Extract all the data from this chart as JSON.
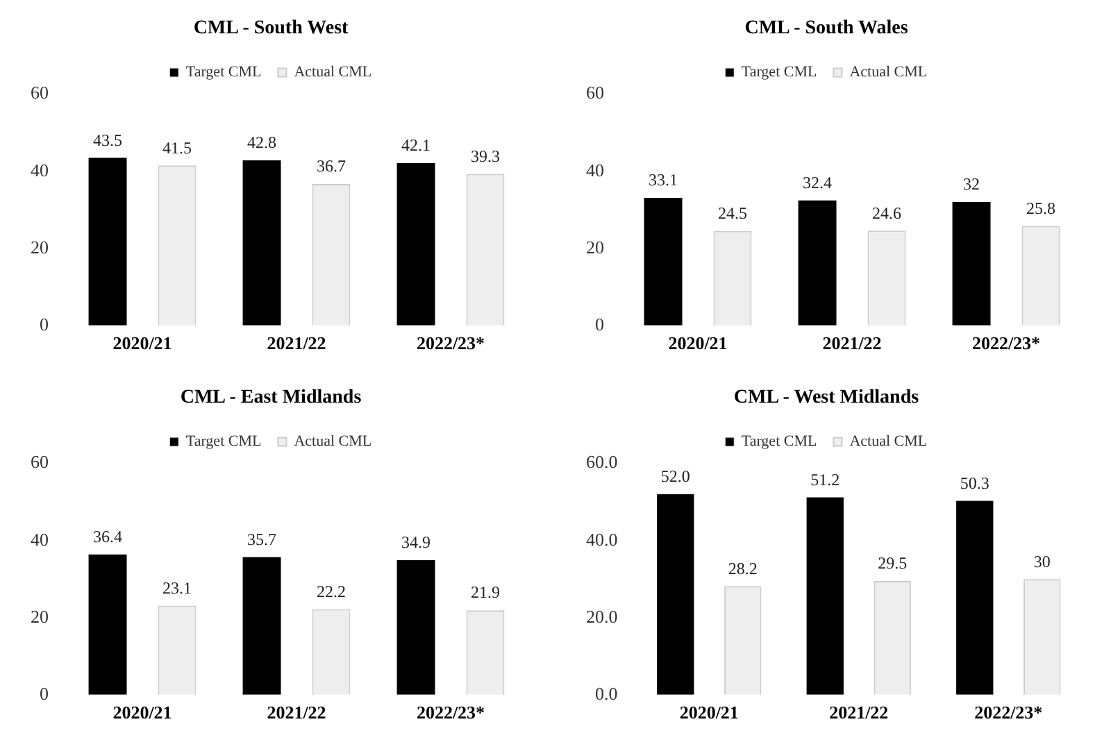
{
  "chart_data": [
    {
      "type": "bar",
      "title": "CML - South West",
      "categories": [
        "2020/21",
        "2021/22",
        "2022/23*"
      ],
      "series": [
        {
          "name": "Target CML",
          "color": "#000000",
          "values": [
            43.5,
            42.8,
            42.1
          ]
        },
        {
          "name": "Actual CML",
          "color": "#eeeeee",
          "values": [
            41.5,
            36.7,
            39.3
          ]
        }
      ],
      "ylim": [
        0,
        60
      ],
      "yticks": [
        0,
        20,
        40,
        60
      ],
      "grid": false,
      "legend": "top",
      "data_labels": true
    },
    {
      "type": "bar",
      "title": "CML - South Wales",
      "categories": [
        "2020/21",
        "2021/22",
        "2022/23*"
      ],
      "series": [
        {
          "name": "Target CML",
          "color": "#000000",
          "values": [
            33.1,
            32.4,
            32
          ]
        },
        {
          "name": "Actual CML",
          "color": "#eeeeee",
          "values": [
            24.5,
            24.6,
            25.8
          ]
        }
      ],
      "ylim": [
        0,
        60
      ],
      "yticks": [
        0,
        20,
        40,
        60
      ],
      "grid": false,
      "legend": "top",
      "data_labels": true
    },
    {
      "type": "bar",
      "title": "CML - East Midlands",
      "categories": [
        "2020/21",
        "2021/22",
        "2022/23*"
      ],
      "series": [
        {
          "name": "Target CML",
          "color": "#000000",
          "values": [
            36.4,
            35.7,
            34.9
          ]
        },
        {
          "name": "Actual CML",
          "color": "#eeeeee",
          "values": [
            23.1,
            22.2,
            21.9
          ]
        }
      ],
      "ylim": [
        0,
        60
      ],
      "yticks": [
        0,
        20,
        40,
        60
      ],
      "grid": false,
      "legend": "top",
      "data_labels": true
    },
    {
      "type": "bar",
      "title": "CML - West Midlands",
      "categories": [
        "2020/21",
        "2021/22",
        "2022/23*"
      ],
      "series": [
        {
          "name": "Target CML",
          "color": "#000000",
          "values": [
            52,
            51.2,
            50.3
          ],
          "value_labels": [
            "52.0",
            "51.2",
            "50.3"
          ]
        },
        {
          "name": "Actual CML",
          "color": "#eeeeee",
          "values": [
            28.2,
            29.5,
            30
          ],
          "value_labels": [
            "28.2",
            "29.5",
            "30"
          ]
        }
      ],
      "ylim": [
        0,
        60
      ],
      "yticks": [
        {
          "value": 0,
          "label": "0.0"
        },
        {
          "value": 20,
          "label": "20.0"
        },
        {
          "value": 40,
          "label": "40.0"
        },
        {
          "value": 60,
          "label": "60.0"
        }
      ],
      "grid": false,
      "legend": "top"
    }
  ]
}
